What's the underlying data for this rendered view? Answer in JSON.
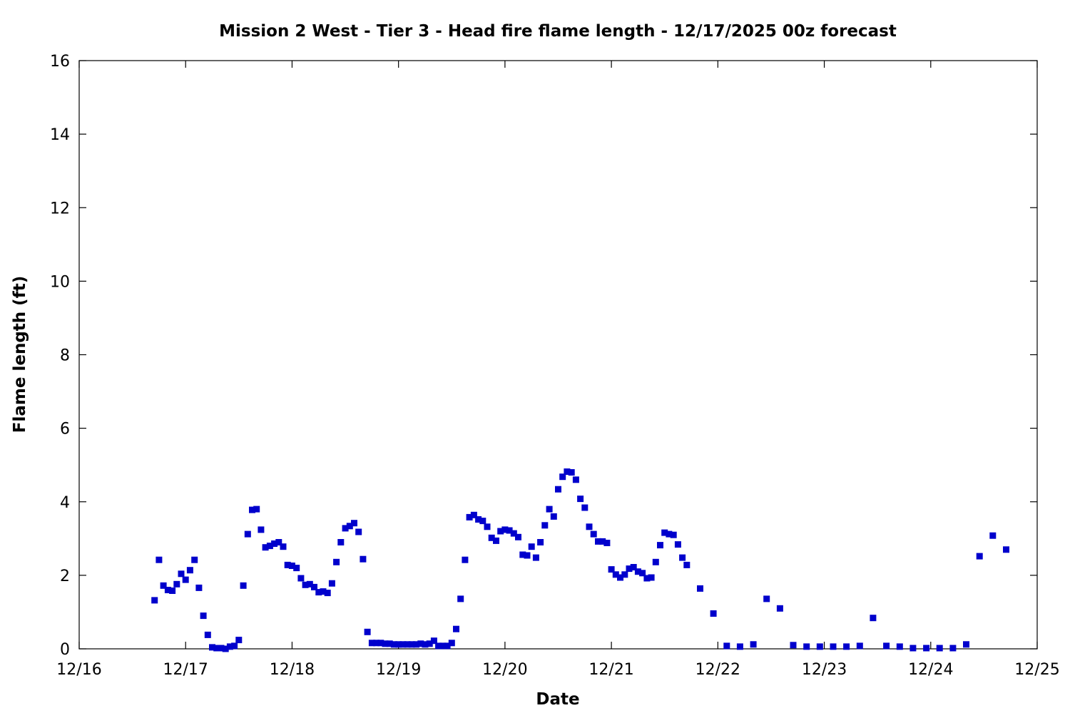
{
  "chart_data": {
    "type": "scatter",
    "title": "Mission 2 West - Tier 3 - Head fire flame length - 12/17/2025 00z forecast",
    "xlabel": "Date",
    "ylabel": "Flame length (ft)",
    "x_ticks": [
      "12/16",
      "12/17",
      "12/18",
      "12/19",
      "12/20",
      "12/21",
      "12/22",
      "12/23",
      "12/24",
      "12/25"
    ],
    "y_ticks": [
      "0",
      "2",
      "4",
      "6",
      "8",
      "10",
      "12",
      "14",
      "16"
    ],
    "ylim": [
      0,
      16
    ],
    "xlim": [
      "12/16 00:00",
      "12/25 00:00"
    ],
    "grid": false,
    "marker_color": "#0000cc",
    "series": [
      {
        "x": [
          "12/16 17:00",
          "12/16 18:00",
          "12/16 19:00",
          "12/16 20:00",
          "12/16 21:00",
          "12/16 22:00",
          "12/16 23:00",
          "12/17 00:00",
          "12/17 01:00",
          "12/17 02:00",
          "12/17 03:00",
          "12/17 04:00",
          "12/17 05:00",
          "12/17 06:00",
          "12/17 07:00",
          "12/17 08:00",
          "12/17 09:00",
          "12/17 10:00",
          "12/17 11:00",
          "12/17 12:00",
          "12/17 13:00",
          "12/17 14:00",
          "12/17 15:00",
          "12/17 16:00",
          "12/17 17:00",
          "12/17 18:00",
          "12/17 19:00",
          "12/17 20:00",
          "12/17 21:00",
          "12/17 22:00",
          "12/17 23:00",
          "12/18 00:00",
          "12/18 01:00",
          "12/18 02:00",
          "12/18 03:00",
          "12/18 04:00",
          "12/18 05:00",
          "12/18 06:00",
          "12/18 07:00",
          "12/18 08:00",
          "12/18 09:00",
          "12/18 10:00",
          "12/18 11:00",
          "12/18 12:00",
          "12/18 13:00",
          "12/18 14:00",
          "12/18 15:00",
          "12/18 16:00",
          "12/18 17:00",
          "12/18 18:00",
          "12/18 19:00",
          "12/18 20:00",
          "12/18 21:00",
          "12/18 22:00",
          "12/18 23:00",
          "12/19 00:00",
          "12/19 01:00",
          "12/19 02:00",
          "12/19 03:00",
          "12/19 04:00",
          "12/19 05:00",
          "12/19 06:00",
          "12/19 07:00",
          "12/19 08:00",
          "12/19 09:00",
          "12/19 10:00",
          "12/19 11:00",
          "12/19 12:00",
          "12/19 13:00",
          "12/19 14:00",
          "12/19 15:00",
          "12/19 16:00",
          "12/19 17:00",
          "12/19 18:00",
          "12/19 19:00",
          "12/19 20:00",
          "12/19 21:00",
          "12/19 22:00",
          "12/19 23:00",
          "12/20 00:00",
          "12/20 01:00",
          "12/20 02:00",
          "12/20 03:00",
          "12/20 04:00",
          "12/20 05:00",
          "12/20 06:00",
          "12/20 07:00",
          "12/20 08:00",
          "12/20 09:00",
          "12/20 10:00",
          "12/20 11:00",
          "12/20 12:00",
          "12/20 13:00",
          "12/20 14:00",
          "12/20 15:00",
          "12/20 16:00",
          "12/20 17:00",
          "12/20 18:00",
          "12/20 19:00",
          "12/20 20:00",
          "12/20 21:00",
          "12/20 22:00",
          "12/20 23:00",
          "12/21 00:00",
          "12/21 01:00",
          "12/21 02:00",
          "12/21 03:00",
          "12/21 04:00",
          "12/21 05:00",
          "12/21 06:00",
          "12/21 07:00",
          "12/21 08:00",
          "12/21 09:00",
          "12/21 10:00",
          "12/21 11:00",
          "12/21 12:00",
          "12/21 13:00",
          "12/21 14:00",
          "12/21 15:00",
          "12/21 16:00",
          "12/21 17:00",
          "12/21 20:00",
          "12/21 23:00",
          "12/22 02:00",
          "12/22 05:00",
          "12/22 08:00",
          "12/22 11:00",
          "12/22 14:00",
          "12/22 17:00",
          "12/22 20:00",
          "12/22 23:00",
          "12/23 02:00",
          "12/23 05:00",
          "12/23 08:00",
          "12/23 11:00",
          "12/23 14:00",
          "12/23 17:00",
          "12/23 20:00",
          "12/23 23:00",
          "12/24 02:00",
          "12/24 05:00",
          "12/24 08:00",
          "12/24 11:00",
          "12/24 14:00",
          "12/24 17:00"
        ],
        "y": [
          1.32,
          2.42,
          1.72,
          1.6,
          1.58,
          1.76,
          2.04,
          1.88,
          2.14,
          2.42,
          1.66,
          0.9,
          0.38,
          0.04,
          0.02,
          0.02,
          0.0,
          0.06,
          0.08,
          0.24,
          1.72,
          3.12,
          3.78,
          3.8,
          3.24,
          2.76,
          2.8,
          2.86,
          2.9,
          2.78,
          2.28,
          2.26,
          2.2,
          1.92,
          1.74,
          1.76,
          1.68,
          1.54,
          1.56,
          1.52,
          1.78,
          2.36,
          2.9,
          3.28,
          3.34,
          3.42,
          3.18,
          2.44,
          0.46,
          0.16,
          0.16,
          0.16,
          0.14,
          0.14,
          0.12,
          0.12,
          0.12,
          0.12,
          0.12,
          0.12,
          0.14,
          0.12,
          0.14,
          0.22,
          0.08,
          0.08,
          0.08,
          0.16,
          0.54,
          1.36,
          2.42,
          3.58,
          3.64,
          3.52,
          3.48,
          3.32,
          3.02,
          2.94,
          3.2,
          3.24,
          3.22,
          3.14,
          3.04,
          2.56,
          2.54,
          2.78,
          2.48,
          2.9,
          3.36,
          3.8,
          3.6,
          4.34,
          4.68,
          4.82,
          4.8,
          4.6,
          4.08,
          3.84,
          3.32,
          3.12,
          2.92,
          2.92,
          2.88,
          2.16,
          2.02,
          1.94,
          2.02,
          2.18,
          2.22,
          2.1,
          2.06,
          1.92,
          1.94,
          2.36,
          2.82,
          3.16,
          3.12,
          3.1,
          2.84,
          2.48,
          2.28,
          1.64,
          0.96,
          0.08,
          0.06,
          0.12,
          1.36,
          1.1,
          0.1,
          0.06,
          0.06,
          0.06,
          0.06,
          0.08,
          0.84,
          0.08,
          0.06,
          0.02,
          0.02,
          0.02,
          0.02,
          0.12,
          2.52,
          3.08,
          2.7
        ]
      }
    ]
  }
}
